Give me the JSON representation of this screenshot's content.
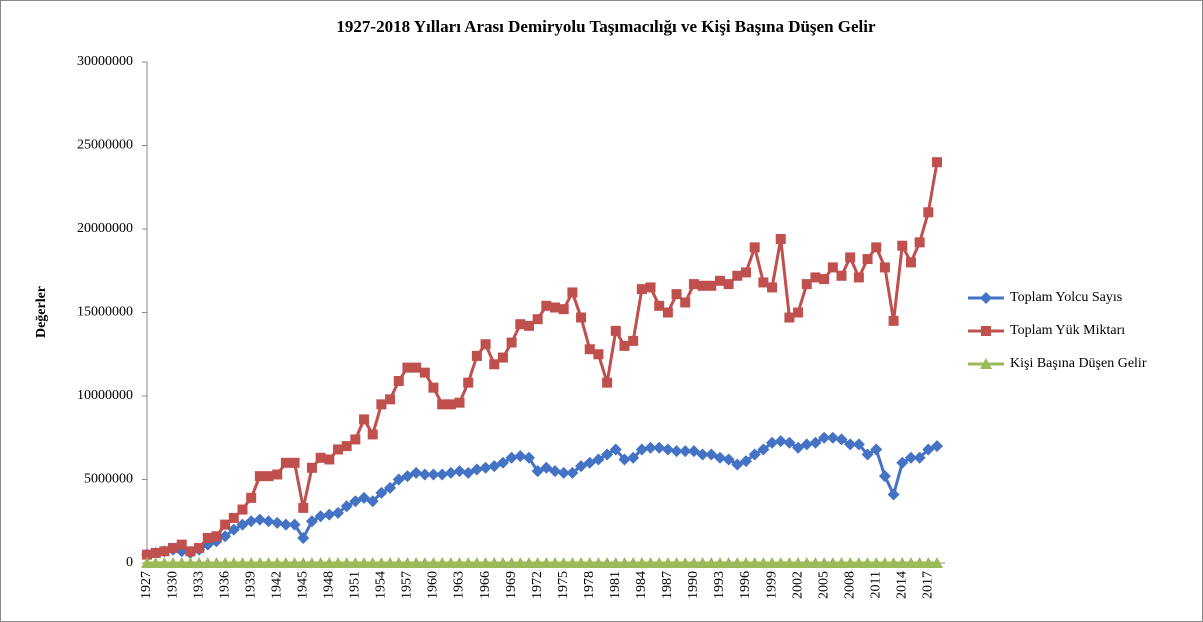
{
  "chart_data": {
    "type": "line",
    "title": "1927-2018 Yılları Arası Demiryolu Taşımacılığı ve  Kişi Başına Düşen Gelir",
    "ylabel": "Değerler",
    "x": [
      1927,
      1928,
      1929,
      1930,
      1931,
      1932,
      1933,
      1934,
      1935,
      1936,
      1937,
      1938,
      1939,
      1940,
      1941,
      1942,
      1943,
      1944,
      1945,
      1946,
      1947,
      1948,
      1949,
      1950,
      1951,
      1952,
      1953,
      1954,
      1955,
      1956,
      1957,
      1958,
      1959,
      1960,
      1961,
      1962,
      1963,
      1964,
      1965,
      1966,
      1967,
      1968,
      1969,
      1970,
      1971,
      1972,
      1973,
      1974,
      1975,
      1976,
      1977,
      1978,
      1979,
      1980,
      1981,
      1982,
      1983,
      1984,
      1985,
      1986,
      1987,
      1988,
      1989,
      1990,
      1991,
      1992,
      1993,
      1994,
      1995,
      1996,
      1997,
      1998,
      1999,
      2000,
      2001,
      2002,
      2003,
      2004,
      2005,
      2006,
      2007,
      2008,
      2009,
      2010,
      2011,
      2012,
      2013,
      2014,
      2015,
      2016,
      2017,
      2018
    ],
    "xlim": [
      1927,
      2018
    ],
    "xticks": [
      1927,
      1930,
      1933,
      1936,
      1939,
      1942,
      1945,
      1948,
      1951,
      1954,
      1957,
      1960,
      1963,
      1966,
      1969,
      1972,
      1975,
      1978,
      1981,
      1984,
      1987,
      1990,
      1993,
      1996,
      1999,
      2002,
      2005,
      2008,
      2011,
      2014,
      2017
    ],
    "ylim": [
      0,
      30000000
    ],
    "yticks": [
      0,
      5000000,
      10000000,
      15000000,
      20000000,
      25000000,
      30000000
    ],
    "grid": false,
    "legend": "right",
    "series": [
      {
        "name": "Toplam Yolcu Sayıs",
        "color": "#4472c4",
        "marker": "diamond",
        "values": [
          500000,
          600000,
          700000,
          800000,
          700000,
          600000,
          800000,
          1100000,
          1300000,
          1600000,
          2000000,
          2300000,
          2500000,
          2600000,
          2500000,
          2400000,
          2300000,
          2300000,
          1500000,
          2500000,
          2800000,
          2900000,
          3000000,
          3400000,
          3700000,
          3900000,
          3700000,
          4200000,
          4500000,
          5000000,
          5200000,
          5400000,
          5300000,
          5300000,
          5300000,
          5400000,
          5500000,
          5400000,
          5600000,
          5700000,
          5800000,
          6000000,
          6300000,
          6400000,
          6300000,
          5500000,
          5700000,
          5500000,
          5400000,
          5400000,
          5800000,
          6000000,
          6200000,
          6500000,
          6800000,
          6200000,
          6300000,
          6800000,
          6900000,
          6900000,
          6800000,
          6700000,
          6700000,
          6700000,
          6500000,
          6500000,
          6300000,
          6200000,
          5900000,
          6100000,
          6500000,
          6800000,
          7200000,
          7300000,
          7200000,
          6900000,
          7100000,
          7200000,
          7500000,
          7500000,
          7400000,
          7100000,
          7100000,
          6500000,
          6800000,
          5200000,
          4100000,
          6000000,
          6300000,
          6300000,
          6800000,
          7000000
        ]
      },
      {
        "name": "Toplam Yük Miktarı",
        "color": "#c0504d",
        "marker": "square",
        "values": [
          500000,
          600000,
          700000,
          900000,
          1100000,
          700000,
          900000,
          1500000,
          1600000,
          2300000,
          2700000,
          3200000,
          3900000,
          5200000,
          5200000,
          5300000,
          6000000,
          6000000,
          3300000,
          5700000,
          6300000,
          6200000,
          6800000,
          7000000,
          7400000,
          8600000,
          7700000,
          9500000,
          9800000,
          10900000,
          11700000,
          11700000,
          11400000,
          10500000,
          9500000,
          9500000,
          9600000,
          10800000,
          12400000,
          13100000,
          11900000,
          12300000,
          13200000,
          14300000,
          14200000,
          14600000,
          15400000,
          15300000,
          15200000,
          16200000,
          14700000,
          12800000,
          12500000,
          10800000,
          13900000,
          13000000,
          13300000,
          16400000,
          16500000,
          15400000,
          15000000,
          16100000,
          15600000,
          16700000,
          16600000,
          16600000,
          16900000,
          16700000,
          17200000,
          17400000,
          18900000,
          16800000,
          16500000,
          19400000,
          14700000,
          15000000,
          16700000,
          17100000,
          17000000,
          17700000,
          17200000,
          18300000,
          17100000,
          18200000,
          18900000,
          17700000,
          14500000,
          19000000,
          18000000,
          19200000,
          21000000,
          24000000
        ]
      },
      {
        "name": "Kişi Başına Düşen Gelir",
        "color": "#9bbb59",
        "marker": "triangle",
        "values": [
          0,
          0,
          0,
          0,
          0,
          0,
          0,
          0,
          0,
          0,
          0,
          0,
          0,
          0,
          0,
          0,
          0,
          0,
          0,
          0,
          0,
          0,
          0,
          0,
          0,
          0,
          0,
          0,
          0,
          0,
          0,
          0,
          0,
          0,
          0,
          0,
          0,
          0,
          0,
          0,
          0,
          0,
          0,
          0,
          0,
          0,
          0,
          0,
          0,
          0,
          0,
          0,
          0,
          0,
          0,
          0,
          0,
          0,
          0,
          0,
          0,
          0,
          0,
          0,
          0,
          0,
          0,
          0,
          0,
          0,
          0,
          0,
          0,
          0,
          0,
          0,
          0,
          0,
          0,
          0,
          0,
          0,
          0,
          0,
          0,
          0,
          0,
          0,
          0,
          0,
          0,
          0
        ]
      }
    ]
  }
}
